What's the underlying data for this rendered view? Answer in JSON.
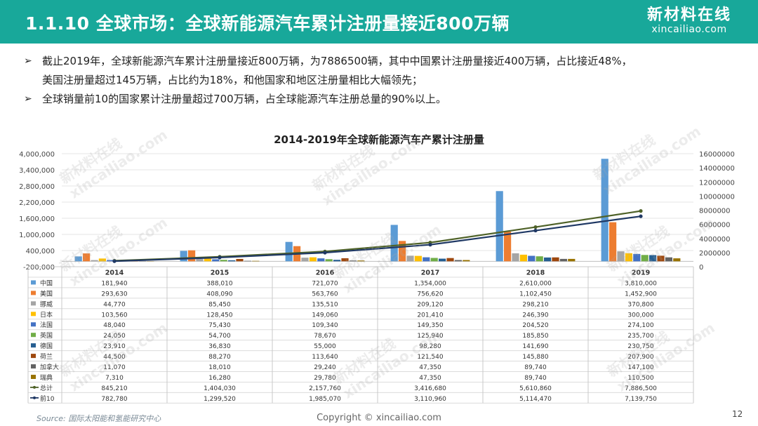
{
  "header": {
    "title": "1.1.10 全球市场：全球新能源汽车累计注册量接近800万辆",
    "logo_cn": "新材料在线",
    "logo_en": "xincailiao.com",
    "bar_color": "#18a89a"
  },
  "bullets": [
    {
      "icon": "arrow-right-icon",
      "line1": "截止2019年，全球新能源汽车累计注册量接近800万辆，为7886500辆，其中中国累计注册量接近400万辆，占比接近48%，",
      "line2": "美国注册量超过145万辆，占比约为18%，和他国家和地区注册量相比大幅领先；"
    },
    {
      "icon": "arrow-right-icon",
      "line1": "全球销量前10的国家累计注册量超过700万辆，占全球能源汽车注册总量的90%以上。",
      "line2": ""
    }
  ],
  "watermark": {
    "cn": "新材料在线",
    "en": "xincailiao.com"
  },
  "chart_data": {
    "type": "bar",
    "title": "2014-2019年全球新能源汽车产累计注册量",
    "categories": [
      "2014",
      "2015",
      "2016",
      "2017",
      "2018",
      "2019"
    ],
    "left_axis": {
      "ylim": [
        -200000,
        4000000
      ],
      "ticks": [
        "-200,000",
        "400,000",
        "1,000,000",
        "1,600,000",
        "2,200,000",
        "2,800,000",
        "3,400,000",
        "4,000,000"
      ]
    },
    "right_axis": {
      "ylim": [
        0,
        16000000
      ],
      "ticks": [
        "0",
        "2000000",
        "4000000",
        "6000000",
        "8000000",
        "10000000",
        "12000000",
        "14000000",
        "16000000"
      ]
    },
    "grid": true,
    "series": [
      {
        "name": "中国",
        "kind": "bar",
        "color": "#5b9bd5",
        "values": [
          181940,
          388010,
          721070,
          1354000,
          2610000,
          3810000
        ],
        "labels": [
          "181,940",
          "388,010",
          "721,070",
          "1,354,000",
          "2,610,000",
          "3,810,000"
        ]
      },
      {
        "name": "美国",
        "kind": "bar",
        "color": "#ed7d31",
        "values": [
          293630,
          408090,
          563760,
          756620,
          1102450,
          1452900
        ],
        "labels": [
          "293,630",
          "408,090",
          "563,760",
          "756,620",
          "1,102,450",
          "1,452,900"
        ]
      },
      {
        "name": "挪威",
        "kind": "bar",
        "color": "#a5a5a5",
        "values": [
          44770,
          85450,
          135510,
          209120,
          298210,
          370800
        ],
        "labels": [
          "44,770",
          "85,450",
          "135,510",
          "209,120",
          "298,210",
          "370,800"
        ]
      },
      {
        "name": "日本",
        "kind": "bar",
        "color": "#ffc000",
        "values": [
          103560,
          128450,
          149060,
          201410,
          246390,
          300000
        ],
        "labels": [
          "103,560",
          "128,450",
          "149,060",
          "201,410",
          "246,390",
          "300,000"
        ]
      },
      {
        "name": "法国",
        "kind": "bar",
        "color": "#4472c4",
        "values": [
          48040,
          75430,
          109340,
          149350,
          204520,
          274100
        ],
        "labels": [
          "48,040",
          "75,430",
          "109,340",
          "149,350",
          "204,520",
          "274,100"
        ]
      },
      {
        "name": "英国",
        "kind": "bar",
        "color": "#70ad47",
        "values": [
          24050,
          54700,
          78670,
          125940,
          185850,
          235700
        ],
        "labels": [
          "24,050",
          "54,700",
          "78,670",
          "125,940",
          "185,850",
          "235,700"
        ]
      },
      {
        "name": "德国",
        "kind": "bar",
        "color": "#255e91",
        "values": [
          23910,
          36830,
          55000,
          98280,
          141690,
          230750
        ],
        "labels": [
          "23,910",
          "36,830",
          "55,000",
          "98,280",
          "141,690",
          "230,750"
        ]
      },
      {
        "name": "荷兰",
        "kind": "bar",
        "color": "#9e480e",
        "values": [
          44500,
          88270,
          113640,
          121540,
          145880,
          207900
        ],
        "labels": [
          "44,500",
          "88,270",
          "113,640",
          "121,540",
          "145,880",
          "207,900"
        ]
      },
      {
        "name": "加拿大",
        "kind": "bar",
        "color": "#636363",
        "values": [
          11070,
          18010,
          29240,
          47350,
          89740,
          147100
        ],
        "labels": [
          "11,070",
          "18,010",
          "29,240",
          "47,350",
          "89,740",
          "147,100"
        ]
      },
      {
        "name": "瑞典",
        "kind": "bar",
        "color": "#997300",
        "values": [
          7310,
          16280,
          29780,
          47350,
          89740,
          110500
        ],
        "labels": [
          "7,310",
          "16,280",
          "29,780",
          "47,350",
          "89,740",
          "110,500"
        ]
      },
      {
        "name": "总计",
        "kind": "line",
        "color": "#4f6228",
        "values": [
          845210,
          1404030,
          2157760,
          3416680,
          5610860,
          7886500
        ],
        "labels": [
          "845,210",
          "1,404,030",
          "2,157,760",
          "3,416,680",
          "5,610,860",
          "7,886,500"
        ]
      },
      {
        "name": "前10",
        "kind": "line",
        "color": "#1f3864",
        "values": [
          782780,
          1299520,
          1985070,
          3110960,
          5114470,
          7139750
        ],
        "labels": [
          "782,780",
          "1,299,520",
          "1,985,070",
          "3,110,960",
          "5,114,470",
          "7,139,750"
        ]
      }
    ]
  },
  "footer": {
    "source": "Source:  国际太阳能和氢能研究中心",
    "copyright": "Copyright © xincailiao.com",
    "page": "12"
  }
}
